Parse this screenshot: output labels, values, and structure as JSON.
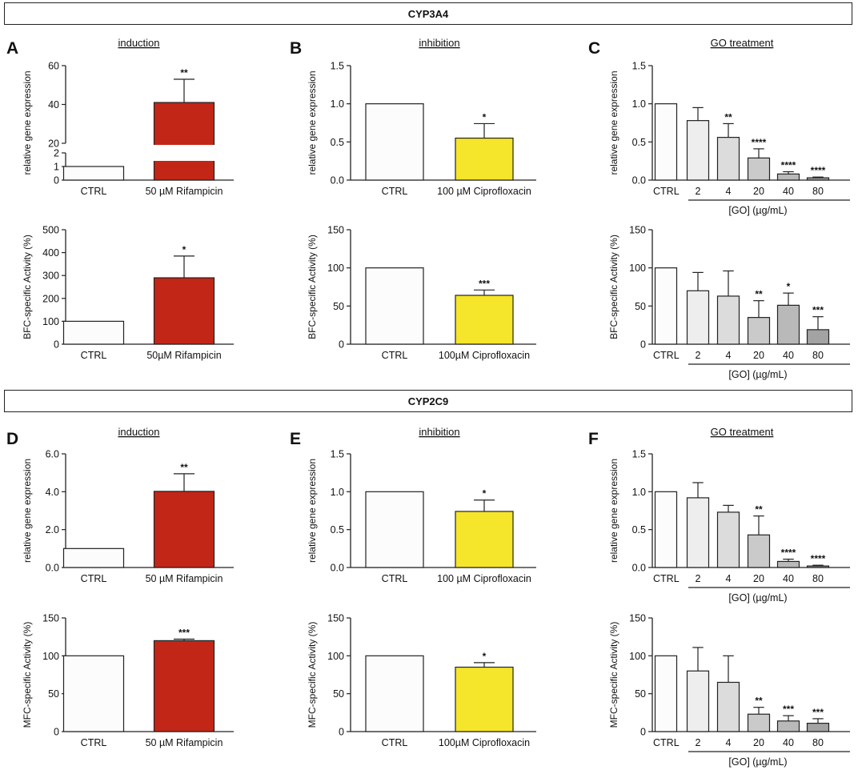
{
  "sections": [
    {
      "id": "cyp3a4",
      "label": "CYP3A4"
    },
    {
      "id": "cyp2c9",
      "label": "CYP2C9"
    }
  ],
  "colors": {
    "ctrl": "#fcfcfc",
    "rifampicin": "#c22616",
    "ciprofloxacin": "#f5e52b",
    "go2": "#eeeeee",
    "go4": "#dcdcdc",
    "go20": "#cacaca",
    "go40": "#b9b9b9",
    "go80": "#a3a3a3",
    "edge": "#222222"
  },
  "chart_data": [
    {
      "id": "A_top",
      "panel": "A",
      "type": "bar",
      "title": "induction",
      "ylabel": "relative gene expression",
      "categories": [
        "CTRL",
        "50 µM Rifampicin"
      ],
      "values": [
        1,
        41
      ],
      "errors": [
        0,
        12
      ],
      "significance": [
        "",
        "**"
      ],
      "colors": [
        "ctrl",
        "rifampicin"
      ],
      "axis_break": {
        "lower": [
          0,
          2
        ],
        "upper": [
          20,
          60
        ]
      },
      "yticks": [
        {
          "v": 0,
          "label": "0"
        },
        {
          "v": 1,
          "label": "1"
        },
        {
          "v": 2,
          "label": "2"
        },
        {
          "v": 20,
          "label": "20"
        },
        {
          "v": 40,
          "label": "40"
        },
        {
          "v": 60,
          "label": "60"
        }
      ]
    },
    {
      "id": "A_bot",
      "panel": "",
      "type": "bar",
      "title": "",
      "ylabel": "BFC-specific Activity (%)",
      "categories": [
        "CTRL",
        "50µM Rifampicin"
      ],
      "values": [
        100,
        290
      ],
      "errors": [
        0,
        95
      ],
      "significance": [
        "",
        "*"
      ],
      "colors": [
        "ctrl",
        "rifampicin"
      ],
      "ylim": [
        0,
        500
      ],
      "yticks": [
        {
          "v": 0,
          "label": "0"
        },
        {
          "v": 100,
          "label": "100"
        },
        {
          "v": 200,
          "label": "200"
        },
        {
          "v": 300,
          "label": "300"
        },
        {
          "v": 400,
          "label": "400"
        },
        {
          "v": 500,
          "label": "500"
        }
      ]
    },
    {
      "id": "B_top",
      "panel": "B",
      "type": "bar",
      "title": "inhibition",
      "ylabel": "relative gene expression",
      "categories": [
        "CTRL",
        "100 µM Ciprofloxacin"
      ],
      "values": [
        1.0,
        0.55
      ],
      "errors": [
        0,
        0.19
      ],
      "significance": [
        "",
        "*"
      ],
      "colors": [
        "ctrl",
        "ciprofloxacin"
      ],
      "ylim": [
        0,
        1.5
      ],
      "yticks": [
        {
          "v": 0,
          "label": "0.0"
        },
        {
          "v": 0.5,
          "label": "0.5"
        },
        {
          "v": 1.0,
          "label": "1.0"
        },
        {
          "v": 1.5,
          "label": "1.5"
        }
      ]
    },
    {
      "id": "B_bot",
      "panel": "",
      "type": "bar",
      "title": "",
      "ylabel": "BFC-specific Activity (%)",
      "categories": [
        "CTRL",
        "100µM Ciprofloxacin"
      ],
      "values": [
        100,
        64
      ],
      "errors": [
        0,
        7
      ],
      "significance": [
        "",
        "***"
      ],
      "colors": [
        "ctrl",
        "ciprofloxacin"
      ],
      "ylim": [
        0,
        150
      ],
      "yticks": [
        {
          "v": 0,
          "label": "0"
        },
        {
          "v": 50,
          "label": "50"
        },
        {
          "v": 100,
          "label": "100"
        },
        {
          "v": 150,
          "label": "150"
        }
      ]
    },
    {
      "id": "C_top",
      "panel": "C",
      "type": "bar",
      "title": "GO treatment",
      "ylabel": "relative gene expression",
      "categories": [
        "CTRL",
        "2",
        "4",
        "20",
        "40",
        "80"
      ],
      "values": [
        1.0,
        0.78,
        0.56,
        0.29,
        0.08,
        0.03
      ],
      "errors": [
        0,
        0.17,
        0.18,
        0.12,
        0.03,
        0.01
      ],
      "significance": [
        "",
        "",
        "**",
        "****",
        "****",
        "****"
      ],
      "colors": [
        "ctrl",
        "go2",
        "go4",
        "go20",
        "go40",
        "go80"
      ],
      "ylim": [
        0,
        1.5
      ],
      "group_label": "[GO] (µg/mL)",
      "yticks": [
        {
          "v": 0,
          "label": "0.0"
        },
        {
          "v": 0.5,
          "label": "0.5"
        },
        {
          "v": 1.0,
          "label": "1.0"
        },
        {
          "v": 1.5,
          "label": "1.5"
        }
      ]
    },
    {
      "id": "C_bot",
      "panel": "",
      "type": "bar",
      "title": "",
      "ylabel": "BFC-specific Activity (%)",
      "categories": [
        "CTRL",
        "2",
        "4",
        "20",
        "40",
        "80"
      ],
      "values": [
        100,
        70,
        63,
        35,
        51,
        19
      ],
      "errors": [
        0,
        24,
        33,
        22,
        16,
        17
      ],
      "significance": [
        "",
        "",
        "",
        "**",
        "*",
        "***"
      ],
      "colors": [
        "ctrl",
        "go2",
        "go4",
        "go20",
        "go40",
        "go80"
      ],
      "ylim": [
        0,
        150
      ],
      "group_label": "[GO] (µg/mL)",
      "yticks": [
        {
          "v": 0,
          "label": "0"
        },
        {
          "v": 50,
          "label": "50"
        },
        {
          "v": 100,
          "label": "100"
        },
        {
          "v": 150,
          "label": "150"
        }
      ]
    },
    {
      "id": "D_top",
      "panel": "D",
      "type": "bar",
      "title": "induction",
      "ylabel": "relative gene expression",
      "categories": [
        "CTRL",
        "50 µM Rifampicin"
      ],
      "values": [
        1.0,
        4.02
      ],
      "errors": [
        0,
        0.93
      ],
      "significance": [
        "",
        "**"
      ],
      "colors": [
        "ctrl",
        "rifampicin"
      ],
      "ylim": [
        0,
        6
      ],
      "yticks": [
        {
          "v": 0,
          "label": "0.0"
        },
        {
          "v": 2,
          "label": "2.0"
        },
        {
          "v": 4,
          "label": "4.0"
        },
        {
          "v": 6,
          "label": "6.0"
        }
      ]
    },
    {
      "id": "D_bot",
      "panel": "",
      "type": "bar",
      "title": "",
      "ylabel": "MFC-specific Activity (%)",
      "categories": [
        "CTRL",
        "50 µM Rifampicin"
      ],
      "values": [
        100,
        120
      ],
      "errors": [
        0,
        2
      ],
      "significance": [
        "",
        "***"
      ],
      "colors": [
        "ctrl",
        "rifampicin"
      ],
      "ylim": [
        0,
        150
      ],
      "yticks": [
        {
          "v": 0,
          "label": "0"
        },
        {
          "v": 50,
          "label": "50"
        },
        {
          "v": 100,
          "label": "100"
        },
        {
          "v": 150,
          "label": "150"
        }
      ]
    },
    {
      "id": "E_top",
      "panel": "E",
      "type": "bar",
      "title": "inhibition",
      "ylabel": "relative gene expression",
      "categories": [
        "CTRL",
        "100 µM Ciprofloxacin"
      ],
      "values": [
        1.0,
        0.74
      ],
      "errors": [
        0,
        0.15
      ],
      "significance": [
        "",
        "*"
      ],
      "colors": [
        "ctrl",
        "ciprofloxacin"
      ],
      "ylim": [
        0,
        1.5
      ],
      "yticks": [
        {
          "v": 0,
          "label": "0.0"
        },
        {
          "v": 0.5,
          "label": "0.5"
        },
        {
          "v": 1.0,
          "label": "1.0"
        },
        {
          "v": 1.5,
          "label": "1.5"
        }
      ]
    },
    {
      "id": "E_bot",
      "panel": "",
      "type": "bar",
      "title": "",
      "ylabel": "MFC-specific Activity (%)",
      "categories": [
        "CTRL",
        "100µM Ciprofloxacin"
      ],
      "values": [
        100,
        85
      ],
      "errors": [
        0,
        6
      ],
      "significance": [
        "",
        "*"
      ],
      "colors": [
        "ctrl",
        "ciprofloxacin"
      ],
      "ylim": [
        0,
        150
      ],
      "yticks": [
        {
          "v": 0,
          "label": "0"
        },
        {
          "v": 50,
          "label": "50"
        },
        {
          "v": 100,
          "label": "100"
        },
        {
          "v": 150,
          "label": "150"
        }
      ]
    },
    {
      "id": "F_top",
      "panel": "F",
      "type": "bar",
      "title": "GO treatment",
      "ylabel": "relative gene expression",
      "categories": [
        "CTRL",
        "2",
        "4",
        "20",
        "40",
        "80"
      ],
      "values": [
        1.0,
        0.92,
        0.73,
        0.43,
        0.08,
        0.02
      ],
      "errors": [
        0,
        0.2,
        0.09,
        0.25,
        0.03,
        0.01
      ],
      "significance": [
        "",
        "",
        "",
        "**",
        "****",
        "****"
      ],
      "colors": [
        "ctrl",
        "go2",
        "go4",
        "go20",
        "go40",
        "go80"
      ],
      "ylim": [
        0,
        1.5
      ],
      "group_label": "[GO] (µg/mL)",
      "yticks": [
        {
          "v": 0,
          "label": "0.0"
        },
        {
          "v": 0.5,
          "label": "0.5"
        },
        {
          "v": 1.0,
          "label": "1.0"
        },
        {
          "v": 1.5,
          "label": "1.5"
        }
      ]
    },
    {
      "id": "F_bot",
      "panel": "",
      "type": "bar",
      "title": "",
      "ylabel": "MFC-specific Activity (%)",
      "categories": [
        "CTRL",
        "2",
        "4",
        "20",
        "40",
        "80"
      ],
      "values": [
        100,
        80,
        65,
        23,
        14,
        11
      ],
      "errors": [
        0,
        31,
        35,
        9,
        7,
        6
      ],
      "significance": [
        "",
        "",
        "",
        "**",
        "***",
        "***"
      ],
      "colors": [
        "ctrl",
        "go2",
        "go4",
        "go20",
        "go40",
        "go80"
      ],
      "ylim": [
        0,
        150
      ],
      "group_label": "[GO] (µg/mL)",
      "yticks": [
        {
          "v": 0,
          "label": "0"
        },
        {
          "v": 50,
          "label": "50"
        },
        {
          "v": 100,
          "label": "100"
        },
        {
          "v": 150,
          "label": "150"
        }
      ]
    }
  ]
}
